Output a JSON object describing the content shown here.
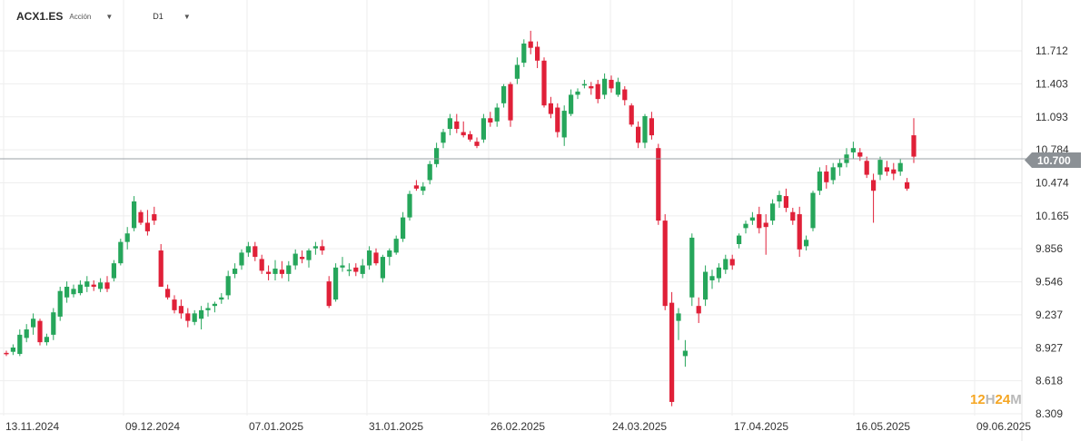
{
  "header": {
    "symbol": "ACX1.ES",
    "asset_type": "Acción",
    "interval": "D1"
  },
  "watermark": {
    "part1": "12",
    "part2": "H",
    "part3": "24",
    "part4": "M"
  },
  "colors": {
    "up": "#26a65b",
    "down": "#e02038",
    "grid": "#eeeeee",
    "price_line": "#9aa0a6",
    "tag": "#8b9095"
  },
  "current_price": {
    "label": "10.700",
    "value": 10.7
  },
  "chart_data": {
    "type": "candlestick",
    "yticks": [
      11.712,
      11.403,
      11.093,
      10.784,
      10.474,
      10.165,
      9.856,
      9.546,
      9.237,
      8.927,
      8.618,
      8.309
    ],
    "ytick_labels": [
      "11.712",
      "11.403",
      "11.093",
      "10.784",
      "10.474",
      "10.165",
      "9.856",
      "9.546",
      "9.237",
      "8.927",
      "8.618",
      "8.309"
    ],
    "xtick_labels": [
      "13.11.2024",
      "09.12.2024",
      "07.01.2025",
      "31.01.2025",
      "26.02.2025",
      "24.03.2025",
      "17.04.2025",
      "16.05.2025",
      "09.06.2025"
    ],
    "ylim": [
      8.29,
      12.0
    ],
    "grid": true,
    "candles": [
      [
        8.88,
        8.9,
        8.85,
        8.87
      ],
      [
        8.89,
        8.96,
        8.86,
        8.93
      ],
      [
        8.87,
        9.1,
        8.85,
        9.05
      ],
      [
        9.02,
        9.15,
        8.98,
        9.1
      ],
      [
        9.12,
        9.25,
        9.05,
        9.2
      ],
      [
        9.18,
        9.2,
        8.95,
        8.98
      ],
      [
        8.98,
        9.06,
        8.95,
        9.03
      ],
      [
        9.05,
        9.3,
        9.0,
        9.26
      ],
      [
        9.22,
        9.5,
        9.18,
        9.46
      ],
      [
        9.4,
        9.55,
        9.35,
        9.5
      ],
      [
        9.43,
        9.52,
        9.4,
        9.48
      ],
      [
        9.44,
        9.56,
        9.42,
        9.52
      ],
      [
        9.5,
        9.6,
        9.45,
        9.55
      ],
      [
        9.52,
        9.56,
        9.46,
        9.5
      ],
      [
        9.48,
        9.58,
        9.45,
        9.54
      ],
      [
        9.54,
        9.6,
        9.45,
        9.48
      ],
      [
        9.58,
        9.75,
        9.55,
        9.72
      ],
      [
        9.72,
        9.95,
        9.7,
        9.92
      ],
      [
        9.92,
        10.06,
        9.85,
        10.0
      ],
      [
        10.05,
        10.35,
        10.02,
        10.3
      ],
      [
        10.2,
        10.22,
        10.08,
        10.1
      ],
      [
        10.1,
        10.22,
        9.98,
        10.02
      ],
      [
        10.18,
        10.25,
        10.08,
        10.12
      ],
      [
        9.84,
        9.9,
        9.5,
        9.5
      ],
      [
        9.48,
        9.52,
        9.38,
        9.4
      ],
      [
        9.38,
        9.42,
        9.25,
        9.28
      ],
      [
        9.32,
        9.38,
        9.2,
        9.25
      ],
      [
        9.25,
        9.3,
        9.12,
        9.18
      ],
      [
        9.17,
        9.28,
        9.14,
        9.25
      ],
      [
        9.2,
        9.32,
        9.1,
        9.28
      ],
      [
        9.28,
        9.35,
        9.22,
        9.3
      ],
      [
        9.32,
        9.36,
        9.26,
        9.34
      ],
      [
        9.38,
        9.44,
        9.34,
        9.4
      ],
      [
        9.42,
        9.65,
        9.38,
        9.6
      ],
      [
        9.62,
        9.72,
        9.58,
        9.67
      ],
      [
        9.7,
        9.85,
        9.66,
        9.82
      ],
      [
        9.82,
        9.92,
        9.78,
        9.88
      ],
      [
        9.88,
        9.92,
        9.74,
        9.78
      ],
      [
        9.76,
        9.8,
        9.62,
        9.65
      ],
      [
        9.64,
        9.7,
        9.56,
        9.62
      ],
      [
        9.62,
        9.75,
        9.56,
        9.67
      ],
      [
        9.66,
        9.74,
        9.58,
        9.62
      ],
      [
        9.62,
        9.74,
        9.55,
        9.7
      ],
      [
        9.7,
        9.85,
        9.66,
        9.81
      ],
      [
        9.78,
        9.84,
        9.72,
        9.76
      ],
      [
        9.75,
        9.86,
        9.68,
        9.84
      ],
      [
        9.86,
        9.92,
        9.8,
        9.88
      ],
      [
        9.88,
        9.94,
        9.8,
        9.84
      ],
      [
        9.55,
        9.6,
        9.3,
        9.32
      ],
      [
        9.38,
        9.72,
        9.36,
        9.68
      ],
      [
        9.68,
        9.78,
        9.64,
        9.7
      ],
      [
        9.66,
        9.72,
        9.6,
        9.66
      ],
      [
        9.68,
        9.72,
        9.6,
        9.64
      ],
      [
        9.62,
        9.76,
        9.58,
        9.7
      ],
      [
        9.7,
        9.88,
        9.66,
        9.84
      ],
      [
        9.82,
        9.86,
        9.7,
        9.72
      ],
      [
        9.58,
        9.8,
        9.54,
        9.78
      ],
      [
        9.78,
        9.86,
        9.7,
        9.84
      ],
      [
        9.82,
        9.98,
        9.8,
        9.95
      ],
      [
        9.95,
        10.2,
        9.92,
        10.15
      ],
      [
        10.15,
        10.4,
        10.12,
        10.37
      ],
      [
        10.45,
        10.5,
        10.4,
        10.42
      ],
      [
        10.4,
        10.48,
        10.36,
        10.44
      ],
      [
        10.5,
        10.68,
        10.46,
        10.65
      ],
      [
        10.65,
        10.85,
        10.62,
        10.8
      ],
      [
        10.85,
        10.98,
        10.8,
        10.95
      ],
      [
        10.98,
        11.12,
        10.92,
        11.08
      ],
      [
        11.05,
        11.12,
        10.94,
        10.98
      ],
      [
        10.95,
        11.05,
        10.9,
        10.92
      ],
      [
        10.93,
        10.96,
        10.86,
        10.88
      ],
      [
        10.86,
        10.9,
        10.8,
        10.82
      ],
      [
        10.88,
        11.12,
        10.85,
        11.08
      ],
      [
        11.08,
        11.14,
        11.0,
        11.04
      ],
      [
        11.05,
        11.22,
        11.0,
        11.18
      ],
      [
        11.22,
        11.4,
        11.18,
        11.38
      ],
      [
        11.4,
        11.42,
        11.0,
        11.06
      ],
      [
        11.45,
        11.65,
        11.4,
        11.58
      ],
      [
        11.6,
        11.82,
        11.56,
        11.78
      ],
      [
        11.8,
        11.9,
        11.68,
        11.74
      ],
      [
        11.75,
        11.8,
        11.55,
        11.62
      ],
      [
        11.62,
        11.65,
        11.18,
        11.2
      ],
      [
        11.22,
        11.28,
        11.08,
        11.12
      ],
      [
        11.18,
        11.22,
        10.9,
        10.95
      ],
      [
        10.9,
        11.2,
        10.82,
        11.15
      ],
      [
        11.12,
        11.35,
        11.1,
        11.3
      ],
      [
        11.3,
        11.36,
        11.26,
        11.33
      ],
      [
        11.4,
        11.44,
        11.36,
        11.4
      ],
      [
        11.38,
        11.42,
        11.3,
        11.36
      ],
      [
        11.4,
        11.44,
        11.22,
        11.26
      ],
      [
        11.3,
        11.5,
        11.26,
        11.45
      ],
      [
        11.44,
        11.48,
        11.32,
        11.36
      ],
      [
        11.3,
        11.46,
        11.28,
        11.42
      ],
      [
        11.35,
        11.38,
        11.2,
        11.25
      ],
      [
        11.2,
        11.22,
        11.0,
        11.02
      ],
      [
        11.0,
        11.05,
        10.8,
        10.85
      ],
      [
        10.85,
        11.12,
        10.8,
        11.1
      ],
      [
        11.08,
        11.14,
        10.88,
        10.92
      ],
      [
        10.8,
        10.84,
        10.08,
        10.12
      ],
      [
        10.12,
        10.18,
        9.28,
        9.32
      ],
      [
        9.35,
        9.45,
        8.38,
        8.42
      ],
      [
        9.18,
        9.3,
        9.0,
        9.25
      ],
      [
        8.85,
        9.0,
        8.75,
        8.9
      ],
      [
        9.4,
        10.0,
        9.32,
        9.96
      ],
      [
        9.32,
        9.4,
        9.16,
        9.25
      ],
      [
        9.38,
        9.7,
        9.32,
        9.64
      ],
      [
        9.56,
        9.66,
        9.48,
        9.6
      ],
      [
        9.58,
        9.72,
        9.54,
        9.68
      ],
      [
        9.66,
        9.8,
        9.62,
        9.76
      ],
      [
        9.76,
        9.8,
        9.66,
        9.7
      ],
      [
        9.9,
        10.0,
        9.86,
        9.98
      ],
      [
        10.05,
        10.12,
        10.0,
        10.09
      ],
      [
        10.12,
        10.2,
        10.08,
        10.15
      ],
      [
        10.18,
        10.25,
        10.0,
        10.05
      ],
      [
        10.1,
        10.18,
        9.8,
        10.06
      ],
      [
        10.12,
        10.32,
        10.08,
        10.28
      ],
      [
        10.3,
        10.4,
        10.24,
        10.36
      ],
      [
        10.35,
        10.42,
        10.2,
        10.24
      ],
      [
        10.2,
        10.24,
        10.08,
        10.12
      ],
      [
        10.18,
        10.25,
        9.78,
        9.85
      ],
      [
        9.88,
        9.98,
        9.84,
        9.94
      ],
      [
        10.05,
        10.4,
        10.02,
        10.38
      ],
      [
        10.4,
        10.62,
        10.36,
        10.58
      ],
      [
        10.58,
        10.64,
        10.42,
        10.48
      ],
      [
        10.5,
        10.66,
        10.46,
        10.62
      ],
      [
        10.62,
        10.7,
        10.54,
        10.66
      ],
      [
        10.66,
        10.8,
        10.62,
        10.74
      ],
      [
        10.76,
        10.86,
        10.7,
        10.8
      ],
      [
        10.76,
        10.8,
        10.68,
        10.72
      ],
      [
        10.68,
        10.72,
        10.52,
        10.55
      ],
      [
        10.5,
        10.56,
        10.1,
        10.4
      ],
      [
        10.55,
        10.72,
        10.5,
        10.69
      ],
      [
        10.62,
        10.68,
        10.54,
        10.58
      ],
      [
        10.6,
        10.66,
        10.5,
        10.56
      ],
      [
        10.58,
        10.7,
        10.54,
        10.66
      ],
      [
        10.48,
        10.52,
        10.4,
        10.42
      ],
      [
        10.92,
        11.08,
        10.66,
        10.72
      ]
    ]
  }
}
